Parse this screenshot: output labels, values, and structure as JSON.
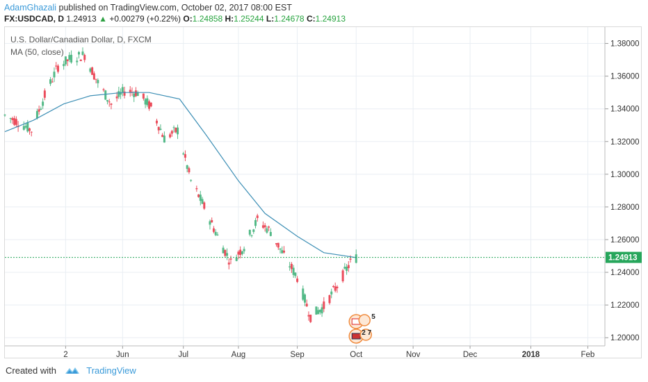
{
  "header": {
    "author": "AdamGhazali",
    "published_text": " published on TradingView.com, October 02, 2017 08:00 EST",
    "symbol": "FX:USDCAD, D",
    "last": "1.24913",
    "change": "+0.00279 (+0.22%)",
    "o_label": "O:",
    "o_value": "1.24858",
    "h_label": "H:",
    "h_value": "1.25244",
    "l_label": "L:",
    "l_value": "1.24678",
    "c_label": "C:",
    "c_value": "1.24913"
  },
  "legend": {
    "title": "U.S. Dollar/Canadian Dollar, D, FXCM",
    "indicator": "MA (50, close)"
  },
  "footer": {
    "created_with": "Created with",
    "brand": "TradingView"
  },
  "colors": {
    "up": "#53b987",
    "down": "#eb4d5c",
    "ma": "#3d8fb5",
    "last_price_bg": "#26a65b",
    "grid": "#e9eef3",
    "axis_text": "#333333"
  },
  "events": {
    "badge_top": "5",
    "badge_bottom": "2 7"
  },
  "chart_data": {
    "type": "candlestick",
    "title": "U.S. Dollar/Canadian Dollar, D, FXCM",
    "ylim": [
      1.195,
      1.39
    ],
    "y_ticks": [
      "1.38000",
      "1.36000",
      "1.34000",
      "1.32000",
      "1.30000",
      "1.28000",
      "1.26000",
      "1.24000",
      "1.22000",
      "1.20000"
    ],
    "y_tick_values": [
      1.38,
      1.36,
      1.34,
      1.32,
      1.3,
      1.28,
      1.26,
      1.24,
      1.22,
      1.2
    ],
    "x_labels": [
      "2",
      "Jun",
      "Jul",
      "Aug",
      "Sep",
      "Oct",
      "Nov",
      "Dec",
      "2018",
      "Feb"
    ],
    "x_label_dates": [
      "2017-05-02",
      "2017-06-01",
      "2017-07-03",
      "2017-08-01",
      "2017-09-01",
      "2017-10-02",
      "2017-11-01",
      "2017-12-01",
      "2018-01-02",
      "2018-02-01"
    ],
    "last_price": 1.24913,
    "last_price_label": "1.24913",
    "close_series": {
      "dates": [
        "2017-03-31",
        "2017-04-07",
        "2017-04-14",
        "2017-04-21",
        "2017-04-28",
        "2017-05-05",
        "2017-05-12",
        "2017-05-19",
        "2017-05-26",
        "2017-06-02",
        "2017-06-09",
        "2017-06-16",
        "2017-06-23",
        "2017-06-30",
        "2017-07-07",
        "2017-07-14",
        "2017-07-21",
        "2017-07-28",
        "2017-08-04",
        "2017-08-11",
        "2017-08-18",
        "2017-08-25",
        "2017-09-01",
        "2017-09-08",
        "2017-09-15",
        "2017-09-22",
        "2017-09-29",
        "2017-10-02"
      ],
      "values": [
        1.336,
        1.332,
        1.327,
        1.348,
        1.366,
        1.371,
        1.373,
        1.356,
        1.343,
        1.351,
        1.35,
        1.341,
        1.322,
        1.327,
        1.296,
        1.28,
        1.262,
        1.246,
        1.256,
        1.272,
        1.265,
        1.25,
        1.237,
        1.213,
        1.219,
        1.232,
        1.246,
        1.249
      ]
    },
    "ma": {
      "name": "MA (50, close)",
      "dates": [
        "2017-03-31",
        "2017-04-15",
        "2017-05-01",
        "2017-05-15",
        "2017-06-01",
        "2017-06-15",
        "2017-07-01",
        "2017-07-15",
        "2017-08-01",
        "2017-08-15",
        "2017-09-01",
        "2017-09-15",
        "2017-10-02"
      ],
      "values": [
        1.326,
        1.333,
        1.343,
        1.348,
        1.35,
        1.35,
        1.346,
        1.324,
        1.296,
        1.276,
        1.262,
        1.252,
        1.249
      ]
    }
  }
}
